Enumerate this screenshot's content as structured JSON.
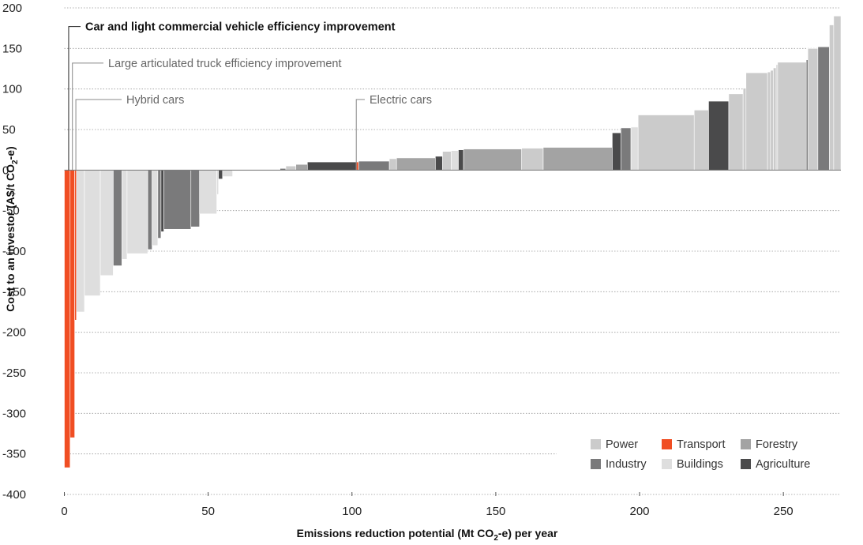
{
  "chart_data": {
    "type": "bar",
    "subtype": "marginal-abatement-cost-curve",
    "xlabel": "Emissions reduction potential (Mt CO2-e) per year",
    "ylabel": "Cost to an investor (A$/t CO2-e)",
    "xlabel_parts": {
      "pre": "Emissions reduction potential (Mt CO",
      "sub": "2",
      "post": "-e) per year"
    },
    "ylabel_parts": {
      "pre": "Cost to an investor (A$/t CO",
      "sub": "2",
      "post": "-e)"
    },
    "xlim": [
      0,
      270
    ],
    "ylim": [
      -400,
      200
    ],
    "x_ticks": [
      0,
      50,
      100,
      150,
      200,
      250
    ],
    "x_tick_labels": [
      "0",
      "50",
      "100",
      "150",
      "200",
      "250"
    ],
    "y_ticks": [
      200,
      150,
      100,
      50,
      0,
      -50,
      -100,
      -150,
      -200,
      -250,
      -300,
      -350,
      -400
    ],
    "y_tick_labels": [
      "200",
      "150",
      "100",
      "50",
      "0",
      "-50",
      "-100",
      "-150",
      "-200",
      "-250",
      "-300",
      "-350",
      "-400"
    ],
    "grid": "horizontal dotted",
    "legend_position": "bottom-right",
    "sector_colors": {
      "Power": "#cbcbcb",
      "Transport": "#f04e23",
      "Forestry": "#a3a3a3",
      "Industry": "#7a7a7b",
      "Buildings": "#dedede",
      "Agriculture": "#4a4a4b"
    },
    "legend": [
      {
        "label": "Power",
        "sector": "Power"
      },
      {
        "label": "Transport",
        "sector": "Transport"
      },
      {
        "label": "Forestry",
        "sector": "Forestry"
      },
      {
        "label": "Industry",
        "sector": "Industry"
      },
      {
        "label": "Buildings",
        "sector": "Buildings"
      },
      {
        "label": "Agriculture",
        "sector": "Agriculture"
      }
    ],
    "annotations": [
      {
        "text": "Car and light commercial vehicle efficiency improvement",
        "x": 1.5,
        "y": 177,
        "style": "bold"
      },
      {
        "text": "Large articulated truck efficiency improvement",
        "x": 2.8,
        "y": 132,
        "style": "normal"
      },
      {
        "text": "Hybrid cars",
        "x": 4.0,
        "y": 87,
        "style": "normal"
      },
      {
        "text": "Electric cars",
        "x": 101.5,
        "y": 87,
        "style": "normal"
      }
    ],
    "bars": [
      {
        "x0": 0.0,
        "x1": 2.0,
        "value": -367,
        "sector": "Transport"
      },
      {
        "x0": 2.0,
        "x1": 3.6,
        "value": -330,
        "sector": "Transport"
      },
      {
        "x0": 3.6,
        "x1": 4.2,
        "value": -185,
        "sector": "Transport"
      },
      {
        "x0": 4.2,
        "x1": 7.0,
        "value": -175,
        "sector": "Buildings"
      },
      {
        "x0": 7.0,
        "x1": 12.5,
        "value": -155,
        "sector": "Buildings"
      },
      {
        "x0": 12.5,
        "x1": 17.0,
        "value": -130,
        "sector": "Buildings"
      },
      {
        "x0": 17.0,
        "x1": 20.0,
        "value": -118,
        "sector": "Industry"
      },
      {
        "x0": 20.0,
        "x1": 21.8,
        "value": -110,
        "sector": "Buildings"
      },
      {
        "x0": 21.8,
        "x1": 29.0,
        "value": -103,
        "sector": "Buildings"
      },
      {
        "x0": 29.0,
        "x1": 30.5,
        "value": -98,
        "sector": "Industry"
      },
      {
        "x0": 30.5,
        "x1": 32.5,
        "value": -93,
        "sector": "Buildings"
      },
      {
        "x0": 32.5,
        "x1": 33.6,
        "value": -84,
        "sector": "Industry"
      },
      {
        "x0": 33.6,
        "x1": 34.6,
        "value": -76,
        "sector": "Agriculture"
      },
      {
        "x0": 34.6,
        "x1": 44.0,
        "value": -73,
        "sector": "Industry"
      },
      {
        "x0": 44.0,
        "x1": 47.0,
        "value": -70,
        "sector": "Industry"
      },
      {
        "x0": 47.0,
        "x1": 53.0,
        "value": -54,
        "sector": "Buildings"
      },
      {
        "x0": 53.0,
        "x1": 53.6,
        "value": -30,
        "sector": "Buildings"
      },
      {
        "x0": 53.6,
        "x1": 55.0,
        "value": -11,
        "sector": "Agriculture"
      },
      {
        "x0": 55.0,
        "x1": 58.5,
        "value": -8,
        "sector": "Buildings"
      },
      {
        "x0": 58.5,
        "x1": 75.0,
        "value": -1,
        "sector": "Power"
      },
      {
        "x0": 75.0,
        "x1": 77.0,
        "value": 2,
        "sector": "Industry"
      },
      {
        "x0": 77.0,
        "x1": 80.5,
        "value": 5,
        "sector": "Power"
      },
      {
        "x0": 80.5,
        "x1": 84.5,
        "value": 7,
        "sector": "Forestry"
      },
      {
        "x0": 84.5,
        "x1": 101.5,
        "value": 10,
        "sector": "Agriculture"
      },
      {
        "x0": 101.5,
        "x1": 102.3,
        "value": 10,
        "sector": "Transport"
      },
      {
        "x0": 102.3,
        "x1": 113.0,
        "value": 11,
        "sector": "Industry"
      },
      {
        "x0": 113.0,
        "x1": 115.5,
        "value": 14,
        "sector": "Power"
      },
      {
        "x0": 115.5,
        "x1": 129.0,
        "value": 15,
        "sector": "Forestry"
      },
      {
        "x0": 129.0,
        "x1": 131.5,
        "value": 17,
        "sector": "Agriculture"
      },
      {
        "x0": 131.5,
        "x1": 134.5,
        "value": 23,
        "sector": "Power"
      },
      {
        "x0": 134.5,
        "x1": 137.0,
        "value": 24,
        "sector": "Buildings"
      },
      {
        "x0": 137.0,
        "x1": 138.8,
        "value": 25,
        "sector": "Agriculture"
      },
      {
        "x0": 138.8,
        "x1": 159.0,
        "value": 26,
        "sector": "Forestry"
      },
      {
        "x0": 159.0,
        "x1": 166.5,
        "value": 27,
        "sector": "Power"
      },
      {
        "x0": 166.5,
        "x1": 190.5,
        "value": 28,
        "sector": "Forestry"
      },
      {
        "x0": 190.5,
        "x1": 193.5,
        "value": 46,
        "sector": "Agriculture"
      },
      {
        "x0": 193.5,
        "x1": 197.0,
        "value": 52,
        "sector": "Industry"
      },
      {
        "x0": 197.0,
        "x1": 199.5,
        "value": 53,
        "sector": "Buildings"
      },
      {
        "x0": 199.5,
        "x1": 219.0,
        "value": 68,
        "sector": "Power"
      },
      {
        "x0": 219.0,
        "x1": 224.0,
        "value": 74,
        "sector": "Power"
      },
      {
        "x0": 224.0,
        "x1": 231.0,
        "value": 85,
        "sector": "Agriculture"
      },
      {
        "x0": 231.0,
        "x1": 236.0,
        "value": 94,
        "sector": "Power"
      },
      {
        "x0": 236.0,
        "x1": 237.0,
        "value": 101,
        "sector": "Power"
      },
      {
        "x0": 237.0,
        "x1": 244.5,
        "value": 120,
        "sector": "Power"
      },
      {
        "x0": 244.5,
        "x1": 245.5,
        "value": 121,
        "sector": "Power"
      },
      {
        "x0": 245.5,
        "x1": 246.5,
        "value": 123,
        "sector": "Power"
      },
      {
        "x0": 246.5,
        "x1": 247.5,
        "value": 126,
        "sector": "Power"
      },
      {
        "x0": 247.5,
        "x1": 248.0,
        "value": 130,
        "sector": "Power"
      },
      {
        "x0": 248.0,
        "x1": 258.0,
        "value": 133,
        "sector": "Power"
      },
      {
        "x0": 258.0,
        "x1": 258.5,
        "value": 136,
        "sector": "Agriculture"
      },
      {
        "x0": 258.5,
        "x1": 262.0,
        "value": 150,
        "sector": "Power"
      },
      {
        "x0": 262.0,
        "x1": 266.0,
        "value": 152,
        "sector": "Industry"
      },
      {
        "x0": 266.0,
        "x1": 267.5,
        "value": 179,
        "sector": "Power"
      },
      {
        "x0": 267.5,
        "x1": 270.0,
        "value": 190,
        "sector": "Power"
      }
    ]
  }
}
